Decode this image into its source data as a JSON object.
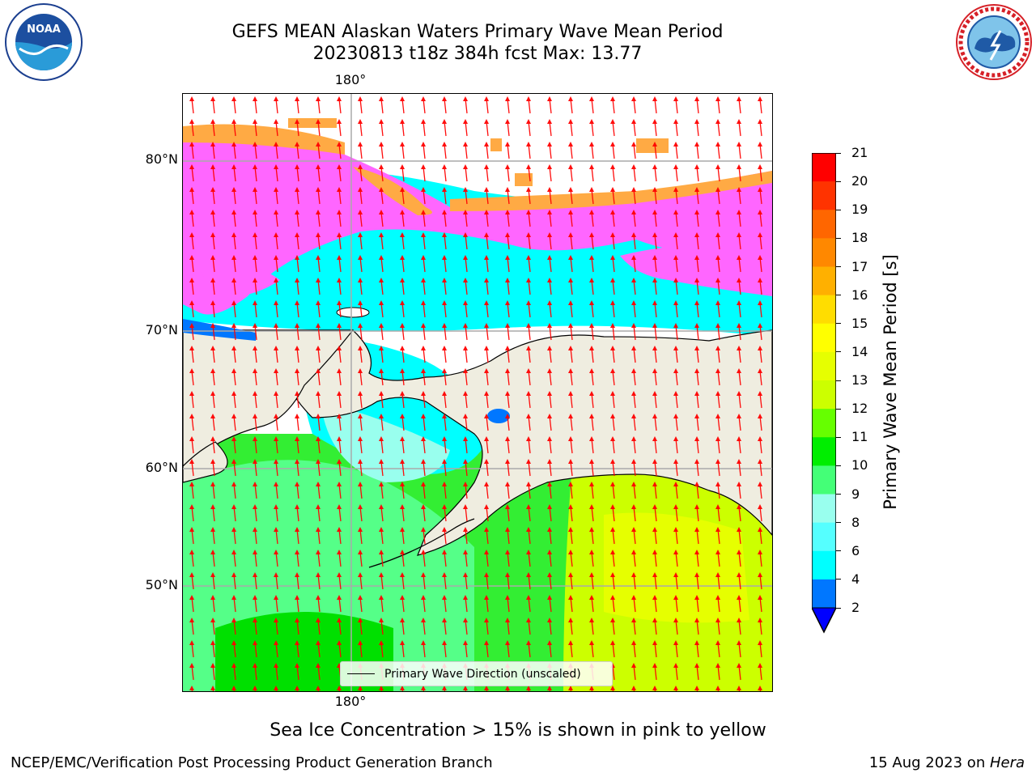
{
  "title": {
    "line1": "GEFS MEAN Alaskan Waters Primary Wave Mean Period",
    "line2": "20230813 t18z 384h fcst   Max: 13.77"
  },
  "logos": {
    "noaa_text": "NOAA",
    "noaa_ring": "NATIONAL OCEANIC AND ATMOSPHERIC ADMINISTRATION · U.S. DEPARTMENT OF COMMERCE",
    "nws_ring": "NATIONAL WEATHER SERVICE"
  },
  "map": {
    "lon_label_top": "180°",
    "lon_label_bottom": "180°",
    "lat_labels": [
      "80°N",
      "70°N",
      "60°N",
      "50°N"
    ],
    "legend_label": "Primary Wave Direction (unscaled)"
  },
  "colorbar": {
    "title": "Primary Wave Mean Period [s]",
    "ticks": [
      "21",
      "20",
      "19",
      "18",
      "17",
      "16",
      "15",
      "14",
      "13",
      "12",
      "11",
      "10",
      "9",
      "8",
      "6",
      "4",
      "2"
    ],
    "colors": [
      "#ff0000",
      "#ff3300",
      "#ff6600",
      "#ff8800",
      "#ffb000",
      "#ffdd00",
      "#ffff00",
      "#e6ff00",
      "#ccff00",
      "#66ff00",
      "#00ee00",
      "#44ff77",
      "#99ffee",
      "#55ffff",
      "#00ffff",
      "#0077ff"
    ],
    "extend_color": "#0000ff"
  },
  "caption": "Sea Ice Concentration > 15% is shown in pink to yellow",
  "footer": {
    "left": "NCEP/EMC/Verification Post Processing Product Generation Branch",
    "right_date": "15 Aug 2023 on ",
    "right_machine": "Hera"
  }
}
